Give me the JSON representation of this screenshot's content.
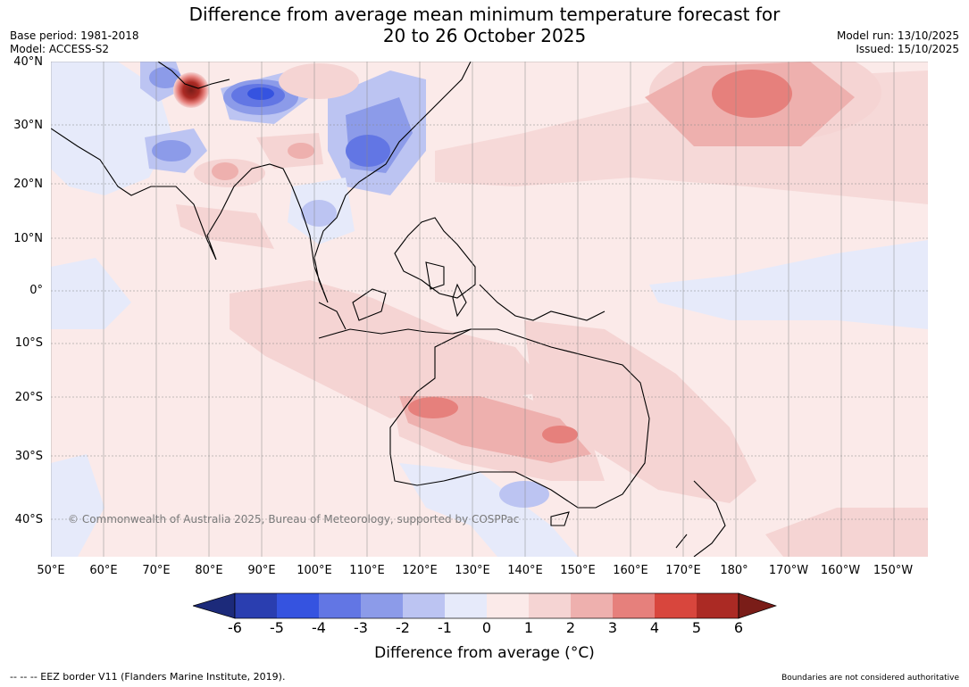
{
  "header": {
    "title_line1": "Difference from average mean minimum temperature forecast for",
    "title_line2": "20 to 26 October 2025",
    "base_period": "Base period: 1981-2018",
    "model": "Model: ACCESS-S2",
    "model_run": "Model run: 13/10/2025",
    "issued": "Issued: 15/10/2025"
  },
  "map": {
    "copyright": "© Commonwealth of Australia 2025, Bureau of Meteorology, supported by COSPPac",
    "lat_labels": [
      "40°N",
      "30°N",
      "20°N",
      "10°N",
      "0°",
      "10°S",
      "20°S",
      "30°S",
      "40°S"
    ],
    "lon_labels": [
      "50°E",
      "60°E",
      "70°E",
      "80°E",
      "90°E",
      "100°E",
      "110°E",
      "120°E",
      "130°E",
      "140°E",
      "150°E",
      "160°E",
      "170°E",
      "180°",
      "170°W",
      "160°W",
      "150°W"
    ],
    "ocean_color": "#fbeae9"
  },
  "colorbar": {
    "ticks": [
      "-6",
      "-5",
      "-4",
      "-3",
      "-2",
      "-1",
      "0",
      "1",
      "2",
      "3",
      "4",
      "5",
      "6"
    ],
    "colors": [
      "#1c2a7a",
      "#2a3eb0",
      "#3553e0",
      "#6276e4",
      "#8c9be9",
      "#bcc4f2",
      "#e6eafa",
      "#fbeae9",
      "#f5d4d3",
      "#eeb0ae",
      "#e6807c",
      "#d8463d",
      "#ab2a24",
      "#7a1d18"
    ],
    "title": "Difference from average (",
    "title_unit": "°C)"
  },
  "footer": {
    "eez_note": "--  --  -- EEZ border V11 (Flanders Marine Institute, 2019).",
    "boundaries": "Boundaries are not considered authoritative"
  }
}
